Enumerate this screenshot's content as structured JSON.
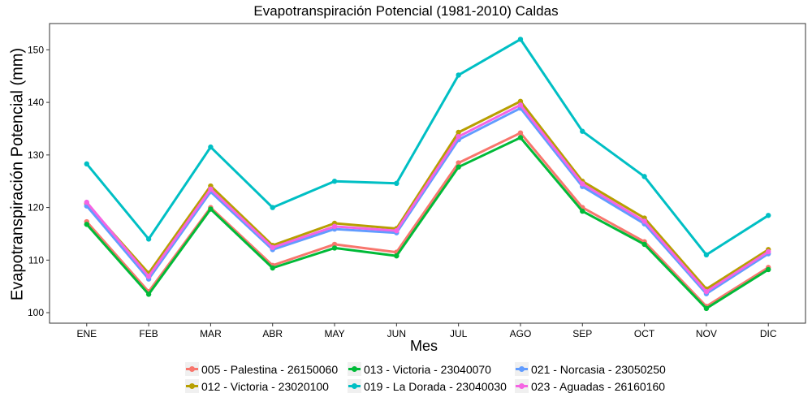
{
  "chart_data": {
    "type": "line",
    "title": "Evapotranspiración Potencial (1981-2010)  Caldas",
    "xlabel": "Mes",
    "ylabel": "Evapotranspiración Potencial  (mm)",
    "categories": [
      "ENE",
      "FEB",
      "MAR",
      "ABR",
      "MAY",
      "JUN",
      "JUL",
      "AGO",
      "SEP",
      "OCT",
      "NOV",
      "DIC"
    ],
    "ylim": [
      98,
      155
    ],
    "yticks": [
      100,
      110,
      120,
      130,
      140,
      150
    ],
    "grid": false,
    "legend_position": "bottom",
    "series": [
      {
        "name": "005 - Palestina - 26150060",
        "color": "#F8766D",
        "values": [
          117.3,
          104.0,
          120.0,
          109.0,
          113.0,
          111.5,
          128.5,
          134.2,
          120.0,
          113.5,
          101.2,
          108.6
        ]
      },
      {
        "name": "012 - Victoria - 23020100",
        "color": "#B79F00",
        "values": [
          120.7,
          107.5,
          124.1,
          112.8,
          117.0,
          116.0,
          134.3,
          140.2,
          125.0,
          118.0,
          104.5,
          112.0
        ]
      },
      {
        "name": "013 - Victoria - 23040070",
        "color": "#00BA38",
        "values": [
          116.8,
          103.5,
          119.7,
          108.5,
          112.3,
          110.8,
          127.7,
          133.3,
          119.3,
          113.0,
          100.8,
          108.2
        ]
      },
      {
        "name": "019 - La Dorada - 23040030",
        "color": "#00BFC4",
        "values": [
          128.3,
          114.0,
          131.5,
          120.0,
          125.0,
          124.6,
          145.2,
          152.0,
          134.5,
          125.9,
          111.0,
          118.5
        ]
      },
      {
        "name": "021 - Norcasia - 23050250",
        "color": "#619CFF",
        "values": [
          120.3,
          106.4,
          123.0,
          112.0,
          115.9,
          115.2,
          132.9,
          138.9,
          124.0,
          116.9,
          103.6,
          111.2
        ]
      },
      {
        "name": "023 - Aguadas - 26160160",
        "color": "#F564E3",
        "values": [
          121.0,
          106.9,
          123.5,
          112.4,
          116.4,
          115.6,
          133.5,
          139.5,
          124.5,
          117.4,
          104.0,
          111.6
        ]
      }
    ]
  }
}
